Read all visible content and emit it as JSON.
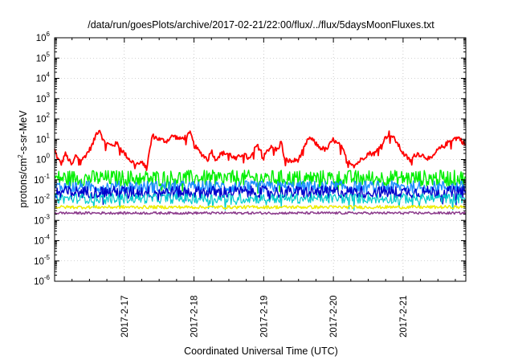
{
  "chart_data": {
    "type": "line",
    "title": "/data/run/goesPlots/archive/2017-02-21/22:00/flux/../flux/5daysMoonFluxes.txt",
    "xlabel": "Coordinated Universal Time (UTC)",
    "ylabel": {
      "prefix": "protons/cm",
      "sup": "2",
      "suffix": "-s-sr-MeV"
    },
    "yscale": "log",
    "ylim_exponents": [
      -6,
      6
    ],
    "ytick_base": "10",
    "ytick_exponents": [
      "-6",
      "-5",
      "-4",
      "-3",
      "-2",
      "-1",
      "0",
      "1",
      "2",
      "3",
      "4",
      "5",
      "6"
    ],
    "xlim_days": [
      0,
      5.9
    ],
    "x_ticks": [
      "2017-2-17",
      "2017-2-18",
      "2017-2-19",
      "2017-2-20",
      "2017-2-21"
    ],
    "x_tick_days": [
      1,
      2,
      3,
      4,
      5
    ],
    "grid": true,
    "series": [
      {
        "color": "#ff0000",
        "linewidth": 1.8,
        "noise": 0.12,
        "x": [
          0,
          0.05,
          0.1,
          0.15,
          0.2,
          0.25,
          0.3,
          0.4,
          0.5,
          0.55,
          0.6,
          0.65,
          0.7,
          0.8,
          0.9,
          1.0,
          1.1,
          1.2,
          1.3,
          1.32,
          1.4,
          1.5,
          1.6,
          1.7,
          1.8,
          1.9,
          1.95,
          2.0,
          2.1,
          2.2,
          2.25,
          2.3,
          2.4,
          2.5,
          2.6,
          2.7,
          2.8,
          2.9,
          3.0,
          3.1,
          3.2,
          3.25,
          3.3,
          3.4,
          3.5,
          3.6,
          3.65,
          3.7,
          3.8,
          3.9,
          4.0,
          4.05,
          4.1,
          4.2,
          4.3,
          4.4,
          4.5,
          4.6,
          4.7,
          4.8,
          4.9,
          5.0,
          5.1,
          5.2,
          5.3,
          5.4,
          5.5,
          5.6,
          5.7,
          5.8,
          5.9
        ],
        "y": [
          3,
          1,
          0.6,
          2,
          1,
          0.5,
          1.5,
          1,
          3,
          6,
          20,
          30,
          8,
          5,
          6,
          2,
          0.8,
          0.6,
          0.7,
          0.35,
          15,
          10,
          8,
          15,
          10,
          14,
          20,
          5,
          2,
          1,
          3,
          1,
          2,
          2,
          1,
          2,
          1,
          5,
          2,
          4,
          3,
          8,
          1,
          0.8,
          1,
          5,
          12,
          9,
          4,
          3,
          10,
          6,
          5,
          1,
          0.5,
          1,
          2,
          2,
          7,
          20,
          8,
          2,
          0.9,
          2,
          1.5,
          1,
          3,
          5,
          10,
          12,
          5
        ]
      },
      {
        "color": "#00ee00",
        "linewidth": 1.4,
        "noise": 0.4,
        "x": [
          0,
          5.9
        ],
        "y": [
          0.12,
          0.12
        ]
      },
      {
        "color": "#1e90ff",
        "linewidth": 1.4,
        "noise": 0.3,
        "x": [
          0,
          5.9
        ],
        "y": [
          0.045,
          0.045
        ]
      },
      {
        "color": "#0000cc",
        "linewidth": 1.4,
        "noise": 0.3,
        "x": [
          0,
          5.9
        ],
        "y": [
          0.025,
          0.025
        ]
      },
      {
        "color": "#00cccc",
        "linewidth": 1.2,
        "noise": 0.25,
        "x": [
          0,
          5.9
        ],
        "y": [
          0.012,
          0.012
        ]
      },
      {
        "color": "#eeee00",
        "linewidth": 1.5,
        "noise": 0.08,
        "x": [
          0,
          5.9
        ],
        "y": [
          0.0045,
          0.0045
        ]
      },
      {
        "color": "#8b3a8b",
        "linewidth": 1.5,
        "noise": 0.06,
        "x": [
          0,
          5.9
        ],
        "y": [
          0.0023,
          0.0023
        ]
      }
    ]
  }
}
